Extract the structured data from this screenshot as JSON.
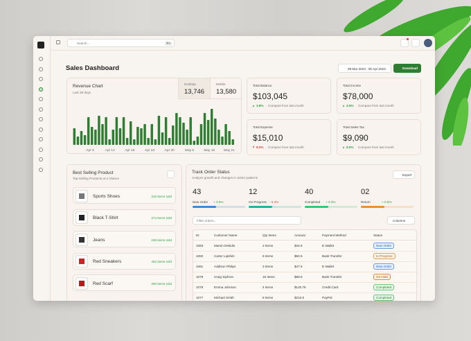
{
  "topbar": {
    "search_placeholder": "Search...",
    "shortcut": "⌘K"
  },
  "header": {
    "title": "Sales Dashboard",
    "date_range": "09 Mar 2023 - 05 Apr 2023",
    "download": "Download"
  },
  "revenue_chart": {
    "title": "Revenue Chart",
    "subtitle": "Last 28 days",
    "tabs": [
      {
        "label": "Desktop",
        "value": "13,746"
      },
      {
        "label": "Mobile",
        "value": "13,580"
      }
    ],
    "x_labels": [
      "Apr 6",
      "Apr 12",
      "Apr 18",
      "Apr 24",
      "Apr 30",
      "May 6",
      "May 18",
      "May 21"
    ],
    "values": [
      24,
      12,
      20,
      14,
      40,
      26,
      22,
      42,
      30,
      40,
      8,
      22,
      40,
      24,
      40,
      10,
      34,
      8,
      26,
      24,
      30,
      10,
      30,
      8,
      42,
      18,
      40,
      10,
      28,
      46,
      40,
      32,
      22,
      40,
      6,
      12,
      30,
      46,
      36,
      52,
      38,
      22,
      12,
      30,
      20,
      8
    ],
    "color": "#2e7d32"
  },
  "stats": [
    {
      "title": "Total Balance",
      "value": "$103,045",
      "change": "3.8%",
      "note": "Compare from last month",
      "trend": "up"
    },
    {
      "title": "Total Income",
      "value": "$78,000",
      "change": "3.5%",
      "note": "Compare from last month",
      "trend": "up"
    },
    {
      "title": "Total Expense",
      "value": "$15,010",
      "change": "8.0%",
      "note": "Compare from last month",
      "trend": "down"
    },
    {
      "title": "Total Sales Tax",
      "value": "$9,090",
      "change": "5.0%",
      "note": "Compare from last month",
      "trend": "up"
    }
  ],
  "best_selling": {
    "title": "Best Selling Product",
    "subtitle": "Top-Selling Products at a Glance",
    "items": [
      {
        "name": "Sports Shoes",
        "sold": "316 items sold"
      },
      {
        "name": "Black T-Shirt",
        "sold": "274 items sold"
      },
      {
        "name": "Jeans",
        "sold": "195 items sold"
      },
      {
        "name": "Red Sneakers",
        "sold": "402 items sold"
      },
      {
        "name": "Red Scarf",
        "sold": "280 items sold"
      }
    ]
  },
  "orders": {
    "title": "Track Order Status",
    "subtitle": "Analyze growth and changes in visitor patterns",
    "export": "Export",
    "summary": [
      {
        "count": "43",
        "label": "New Order",
        "change": "+ 0.5%",
        "color": "#3b8ad9"
      },
      {
        "count": "12",
        "label": "On Progress",
        "change": "- 0.3%",
        "color": "#1fb5a3"
      },
      {
        "count": "40",
        "label": "Completed",
        "change": "+ 0.3%",
        "color": "#2ecc71"
      },
      {
        "count": "02",
        "label": "Return",
        "change": "+ 0.5%",
        "color": "#e8912d"
      }
    ],
    "filter_placeholder": "Filter orders...",
    "columns_button": "Columns",
    "table": {
      "columns": [
        "ID",
        "Customer Name",
        "Qty Items",
        "Amount",
        "Payment Method",
        "Status"
      ],
      "rows": [
        [
          "1083",
          "Marvin Dekidis",
          "2 Items",
          "$34.5",
          "E-Wallet",
          "New Order"
        ],
        [
          "1082",
          "Carter Lipshitz",
          "6 Items",
          "$60.5",
          "Bank Transfer",
          "In Progress"
        ],
        [
          "1081",
          "Addison Philips",
          "3 Items",
          "$47.5",
          "E-Wallet",
          "New Order"
        ],
        [
          "1079",
          "Craig Siphron",
          "15 Items",
          "$89.6",
          "Bank Transfer",
          "On Hold"
        ],
        [
          "1078",
          "Emma Johnson",
          "4 Items",
          "$120.75",
          "Credit Card",
          "Completed"
        ],
        [
          "1077",
          "Michael Smith",
          "8 Items",
          "$210.5",
          "PayPal",
          "Completed"
        ]
      ]
    }
  }
}
